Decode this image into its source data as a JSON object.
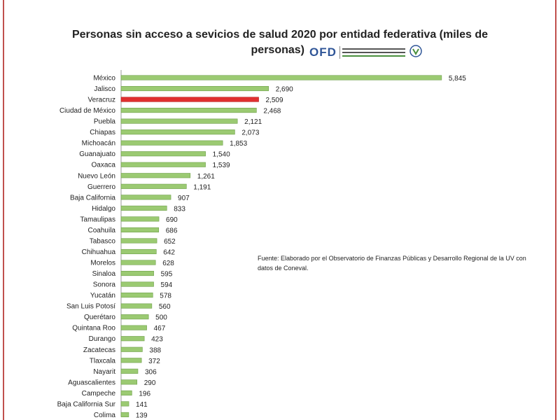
{
  "chart_data": {
    "type": "bar",
    "orientation": "horizontal",
    "title": "Personas sin acceso  a sevicios de salud  2020 por entidad federativa (miles de personas)",
    "title_line1": "Personas sin acceso  a sevicios de salud  2020 por entidad federativa (miles de",
    "title_line2": "personas)",
    "categories": [
      "México",
      "Jalisco",
      "Veracruz",
      "Ciudad de México",
      "Puebla",
      "Chiapas",
      "Michoacán",
      "Guanajuato",
      "Oaxaca",
      "Nuevo León",
      "Guerrero",
      "Baja California",
      "Hidalgo",
      "Tamaulipas",
      "Coahuila",
      "Tabasco",
      "Chihuahua",
      "Morelos",
      "Sinaloa",
      "Sonora",
      "Yucatán",
      "San Luis Potosí",
      "Querétaro",
      "Quintana Roo",
      "Durango",
      "Zacatecas",
      "Tlaxcala",
      "Nayarit",
      "Aguascalientes",
      "Campeche",
      "Baja California Sur",
      "Colima"
    ],
    "values": [
      5845,
      2690,
      2509,
      2468,
      2121,
      2073,
      1853,
      1540,
      1539,
      1261,
      1191,
      907,
      833,
      690,
      686,
      652,
      642,
      628,
      595,
      594,
      578,
      560,
      500,
      467,
      423,
      388,
      372,
      306,
      290,
      196,
      141,
      139
    ],
    "value_labels": [
      "5,845",
      "2,690",
      "2,509",
      "2,468",
      "2,121",
      "2,073",
      "1,853",
      "1,540",
      "1,539",
      "1,261",
      "1,191",
      "907",
      "833",
      "690",
      "686",
      "652",
      "642",
      "628",
      "595",
      "594",
      "578",
      "560",
      "500",
      "467",
      "423",
      "388",
      "372",
      "306",
      "290",
      "196",
      "141",
      "139"
    ],
    "highlight": "Veracruz",
    "xlim": [
      0,
      6000
    ],
    "grid": false,
    "legend": "none",
    "colors": {
      "bar": "#9bca72",
      "bar_edge": "#6e9f4a",
      "highlight": "#e03030",
      "highlight_edge": "#b41e1e",
      "axis": "#999999"
    }
  },
  "logo": {
    "text": "OFD",
    "icon": "uv-seal-icon"
  },
  "source_note": "Fuente: Elaborado por el Observatorio de Finanzas Públicas y Desarrollo Regional de la UV con datos de Coneval."
}
